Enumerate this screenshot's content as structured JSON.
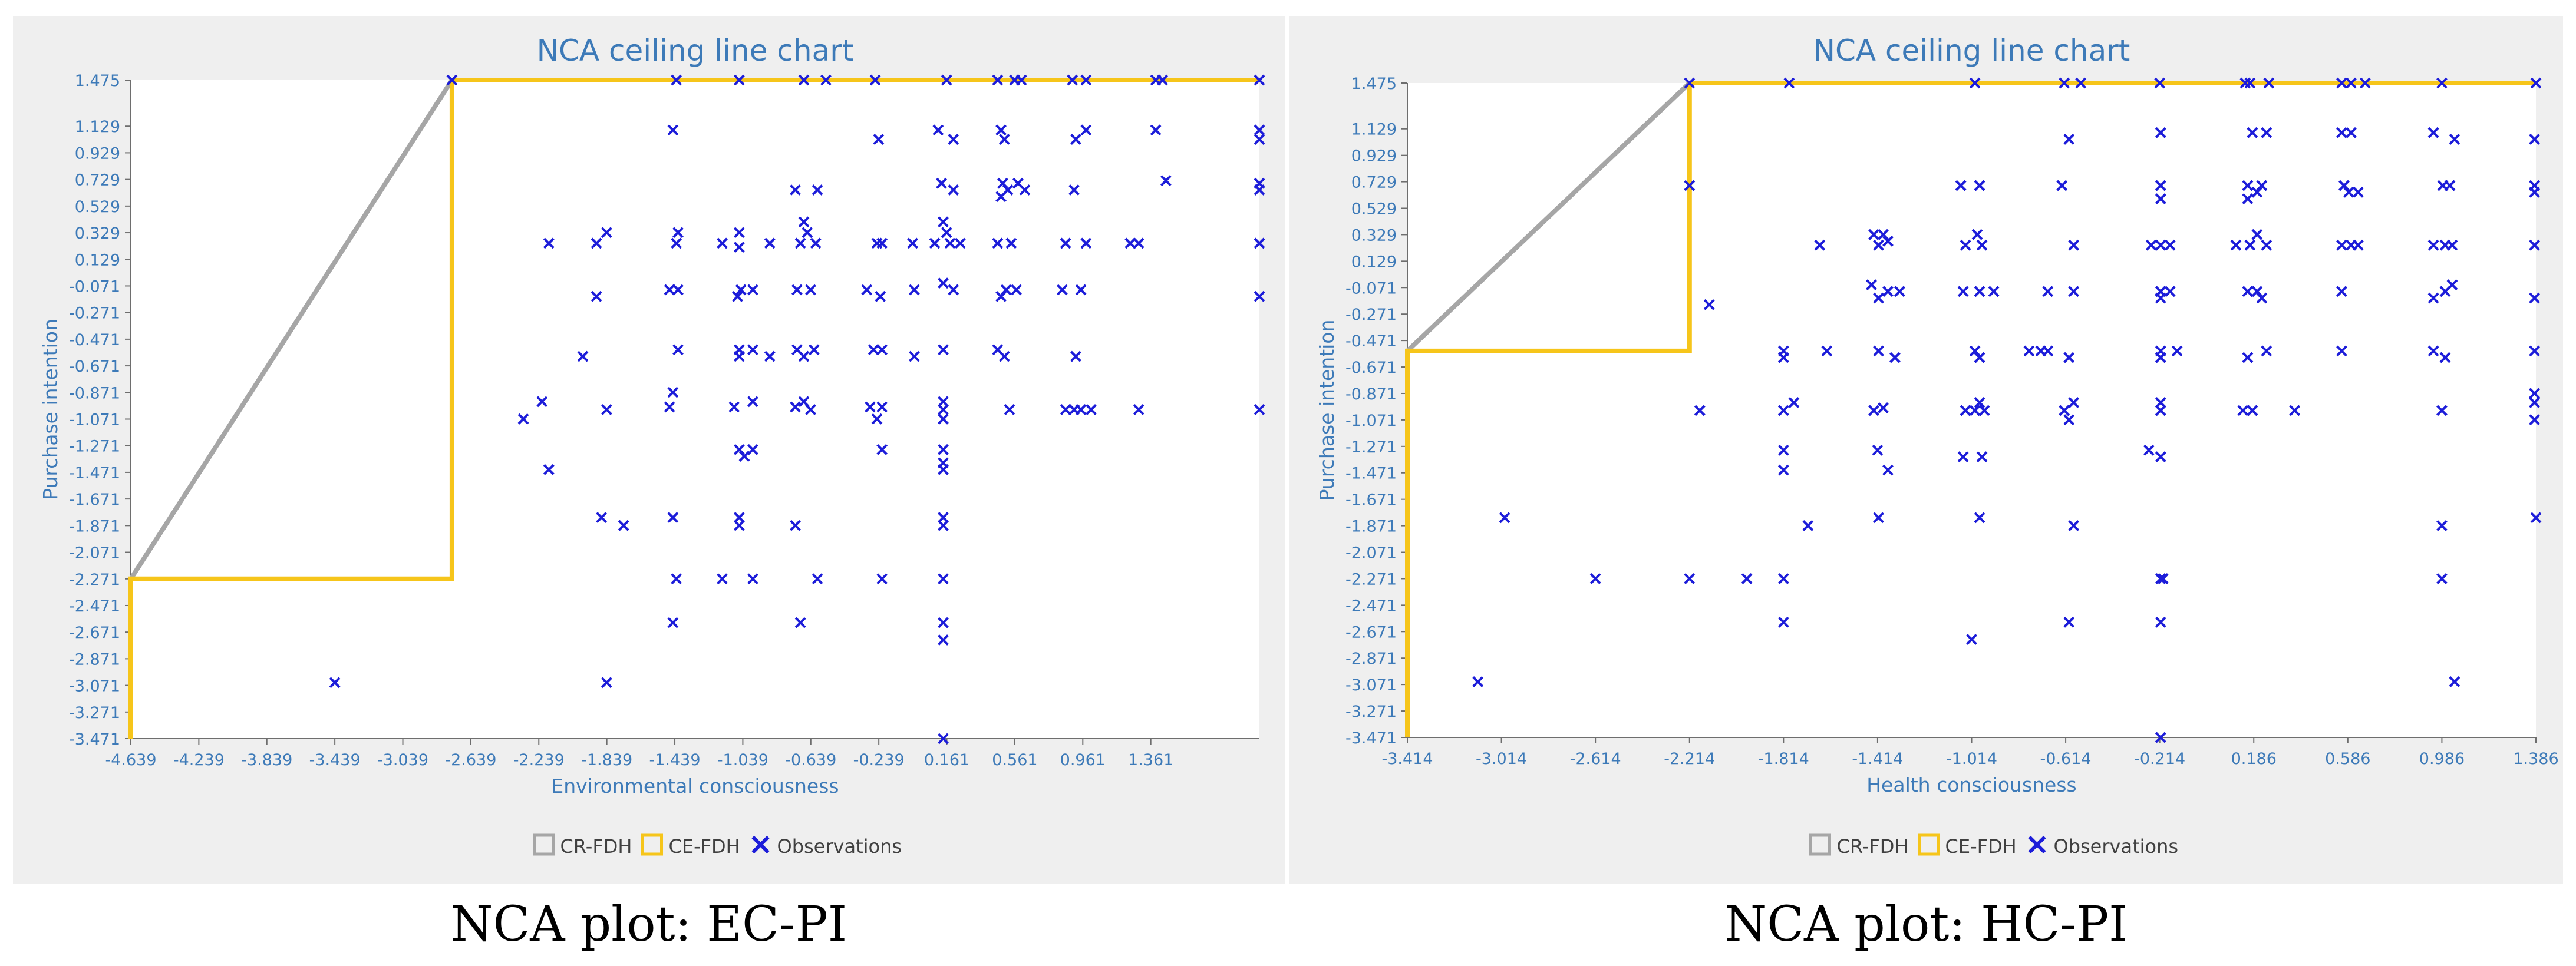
{
  "chart_data": [
    {
      "type": "scatter",
      "title": "NCA ceiling line chart",
      "xlabel": "Environmental consciousness",
      "ylabel": "Purchase intention",
      "xlim": [
        -4.639,
        2.0
      ],
      "ylim": [
        -3.471,
        1.475
      ],
      "x_ticks": [
        "-4.639",
        "-4.239",
        "-3.839",
        "-3.439",
        "-3.039",
        "-2.639",
        "-2.239",
        "-1.839",
        "-1.439",
        "-1.039",
        "-0.639",
        "-0.239",
        "0.161",
        "0.561",
        "0.961",
        "1.361"
      ],
      "y_ticks": [
        "1.475",
        "1.129",
        "0.929",
        "0.729",
        "0.529",
        "0.329",
        "0.129",
        "-0.071",
        "-0.271",
        "-0.471",
        "-0.671",
        "-0.871",
        "-1.071",
        "-1.271",
        "-1.471",
        "-1.671",
        "-1.871",
        "-2.071",
        "-2.271",
        "-2.471",
        "-2.671",
        "-2.871",
        "-3.071",
        "-3.271",
        "-3.471"
      ],
      "legend": [
        "CR-FDH",
        "CE-FDH",
        "Observations"
      ],
      "legend_position": "bottom",
      "grid": false,
      "ce_fdh": [
        [
          -4.639,
          -3.471
        ],
        [
          -4.639,
          -2.271
        ],
        [
          -2.75,
          -2.271
        ],
        [
          -2.75,
          1.475
        ],
        [
          2.0,
          1.475
        ]
      ],
      "cr_fdh": [
        [
          -4.639,
          -2.271
        ],
        [
          -2.75,
          1.475
        ]
      ],
      "observations": [
        [
          -2.75,
          1.475
        ],
        [
          -1.43,
          1.475
        ],
        [
          -1.06,
          1.475
        ],
        [
          -0.68,
          1.475
        ],
        [
          -0.55,
          1.475
        ],
        [
          -0.26,
          1.475
        ],
        [
          0.16,
          1.475
        ],
        [
          0.46,
          1.475
        ],
        [
          0.56,
          1.475
        ],
        [
          0.6,
          1.475
        ],
        [
          0.9,
          1.475
        ],
        [
          0.98,
          1.475
        ],
        [
          1.39,
          1.475
        ],
        [
          1.43,
          1.475
        ],
        [
          2.0,
          1.475
        ],
        [
          -1.45,
          1.1
        ],
        [
          -0.24,
          1.03
        ],
        [
          0.11,
          1.1
        ],
        [
          0.2,
          1.03
        ],
        [
          0.48,
          1.1
        ],
        [
          0.5,
          1.03
        ],
        [
          0.92,
          1.03
        ],
        [
          0.98,
          1.1
        ],
        [
          1.39,
          1.1
        ],
        [
          2.0,
          1.1
        ],
        [
          2.0,
          1.03
        ],
        [
          -0.73,
          0.65
        ],
        [
          -0.6,
          0.65
        ],
        [
          0.13,
          0.7
        ],
        [
          0.2,
          0.65
        ],
        [
          0.49,
          0.7
        ],
        [
          0.52,
          0.65
        ],
        [
          0.58,
          0.7
        ],
        [
          0.48,
          0.6
        ],
        [
          0.62,
          0.65
        ],
        [
          0.91,
          0.65
        ],
        [
          1.45,
          0.72
        ],
        [
          2.0,
          0.7
        ],
        [
          2.0,
          0.65
        ],
        [
          -0.68,
          0.41
        ],
        [
          0.14,
          0.41
        ],
        [
          -2.18,
          0.25
        ],
        [
          -1.9,
          0.25
        ],
        [
          -1.84,
          0.33
        ],
        [
          -1.43,
          0.25
        ],
        [
          -1.42,
          0.33
        ],
        [
          -1.16,
          0.25
        ],
        [
          -1.06,
          0.33
        ],
        [
          -1.06,
          0.22
        ],
        [
          -0.88,
          0.25
        ],
        [
          -0.7,
          0.25
        ],
        [
          -0.66,
          0.33
        ],
        [
          -0.61,
          0.25
        ],
        [
          -0.25,
          0.25
        ],
        [
          -0.22,
          0.25
        ],
        [
          -0.04,
          0.25
        ],
        [
          0.09,
          0.25
        ],
        [
          0.16,
          0.33
        ],
        [
          0.18,
          0.25
        ],
        [
          0.24,
          0.25
        ],
        [
          0.46,
          0.25
        ],
        [
          0.54,
          0.25
        ],
        [
          0.86,
          0.25
        ],
        [
          0.98,
          0.25
        ],
        [
          1.24,
          0.25
        ],
        [
          1.29,
          0.25
        ],
        [
          2.0,
          0.25
        ],
        [
          -1.9,
          -0.15
        ],
        [
          -1.47,
          -0.1
        ],
        [
          -1.42,
          -0.1
        ],
        [
          -1.05,
          -0.1
        ],
        [
          -1.07,
          -0.15
        ],
        [
          -0.98,
          -0.1
        ],
        [
          -0.72,
          -0.1
        ],
        [
          -0.64,
          -0.1
        ],
        [
          -0.31,
          -0.1
        ],
        [
          -0.23,
          -0.15
        ],
        [
          -0.03,
          -0.1
        ],
        [
          0.14,
          -0.05
        ],
        [
          0.2,
          -0.1
        ],
        [
          0.51,
          -0.1
        ],
        [
          0.48,
          -0.15
        ],
        [
          0.57,
          -0.1
        ],
        [
          0.84,
          -0.1
        ],
        [
          0.95,
          -0.1
        ],
        [
          2.0,
          -0.15
        ],
        [
          -1.98,
          -0.6
        ],
        [
          -1.42,
          -0.55
        ],
        [
          -1.06,
          -0.55
        ],
        [
          -1.06,
          -0.6
        ],
        [
          -0.98,
          -0.55
        ],
        [
          -0.88,
          -0.6
        ],
        [
          -0.72,
          -0.55
        ],
        [
          -0.68,
          -0.6
        ],
        [
          -0.62,
          -0.55
        ],
        [
          -0.27,
          -0.55
        ],
        [
          -0.22,
          -0.55
        ],
        [
          -0.03,
          -0.6
        ],
        [
          0.14,
          -0.55
        ],
        [
          0.46,
          -0.55
        ],
        [
          0.5,
          -0.6
        ],
        [
          0.92,
          -0.6
        ],
        [
          -1.45,
          -0.87
        ],
        [
          -2.33,
          -1.07
        ],
        [
          -2.22,
          -0.94
        ],
        [
          -1.84,
          -1.0
        ],
        [
          -1.47,
          -0.98
        ],
        [
          -1.09,
          -0.98
        ],
        [
          -0.98,
          -0.94
        ],
        [
          -0.73,
          -0.98
        ],
        [
          -0.64,
          -1.0
        ],
        [
          -0.68,
          -0.94
        ],
        [
          -0.29,
          -0.98
        ],
        [
          -0.25,
          -1.07
        ],
        [
          -0.22,
          -0.98
        ],
        [
          0.14,
          -0.94
        ],
        [
          0.14,
          -1.0
        ],
        [
          0.14,
          -1.07
        ],
        [
          0.53,
          -1.0
        ],
        [
          0.86,
          -1.0
        ],
        [
          0.91,
          -1.0
        ],
        [
          0.95,
          -1.0
        ],
        [
          1.01,
          -1.0
        ],
        [
          1.29,
          -1.0
        ],
        [
          2.0,
          -1.0
        ],
        [
          -2.18,
          -1.45
        ],
        [
          -1.06,
          -1.3
        ],
        [
          -1.03,
          -1.35
        ],
        [
          -0.98,
          -1.3
        ],
        [
          -0.22,
          -1.3
        ],
        [
          0.14,
          -1.3
        ],
        [
          0.14,
          -1.4
        ],
        [
          0.14,
          -1.45
        ],
        [
          -1.87,
          -1.81
        ],
        [
          -1.74,
          -1.87
        ],
        [
          -1.45,
          -1.81
        ],
        [
          -1.06,
          -1.81
        ],
        [
          -1.06,
          -1.87
        ],
        [
          -0.73,
          -1.87
        ],
        [
          0.14,
          -1.81
        ],
        [
          0.14,
          -1.87
        ],
        [
          -1.43,
          -2.271
        ],
        [
          -1.16,
          -2.271
        ],
        [
          -0.98,
          -2.271
        ],
        [
          -0.6,
          -2.271
        ],
        [
          -0.22,
          -2.271
        ],
        [
          0.14,
          -2.271
        ],
        [
          -1.45,
          -2.6
        ],
        [
          -0.7,
          -2.6
        ],
        [
          0.14,
          -2.6
        ],
        [
          0.14,
          -2.73
        ],
        [
          -3.439,
          -3.05
        ],
        [
          -1.84,
          -3.05
        ],
        [
          0.14,
          -3.471
        ]
      ]
    },
    {
      "type": "scatter",
      "title": "NCA ceiling line chart",
      "xlabel": "Health consciousness",
      "ylabel": "Purchase intention",
      "xlim": [
        -3.414,
        1.386
      ],
      "ylim": [
        -3.471,
        1.475
      ],
      "x_ticks": [
        "-3.414",
        "-3.014",
        "-2.614",
        "-2.214",
        "-1.814",
        "-1.414",
        "-1.014",
        "-0.614",
        "-0.214",
        "0.186",
        "0.586",
        "0.986",
        "1.386"
      ],
      "y_ticks": [
        "1.475",
        "1.129",
        "0.929",
        "0.729",
        "0.529",
        "0.329",
        "0.129",
        "-0.071",
        "-0.271",
        "-0.471",
        "-0.671",
        "-0.871",
        "-1.071",
        "-1.271",
        "-1.471",
        "-1.671",
        "-1.871",
        "-2.071",
        "-2.271",
        "-2.471",
        "-2.671",
        "-2.871",
        "-3.071",
        "-3.271",
        "-3.471"
      ],
      "legend": [
        "CR-FDH",
        "CE-FDH",
        "Observations"
      ],
      "legend_position": "bottom",
      "grid": false,
      "ce_fdh": [
        [
          -3.414,
          -3.471
        ],
        [
          -3.414,
          -0.55
        ],
        [
          -2.214,
          -0.55
        ],
        [
          -2.214,
          1.475
        ],
        [
          1.386,
          1.475
        ]
      ],
      "cr_fdh": [
        [
          -3.414,
          -0.55
        ],
        [
          -2.214,
          1.475
        ]
      ],
      "observations": [
        [
          -2.214,
          1.475
        ],
        [
          -1.79,
          1.475
        ],
        [
          -1.0,
          1.475
        ],
        [
          -0.62,
          1.475
        ],
        [
          -0.55,
          1.475
        ],
        [
          -0.214,
          1.475
        ],
        [
          0.15,
          1.475
        ],
        [
          0.17,
          1.475
        ],
        [
          0.25,
          1.475
        ],
        [
          0.56,
          1.475
        ],
        [
          0.6,
          1.475
        ],
        [
          0.66,
          1.475
        ],
        [
          0.986,
          1.475
        ],
        [
          1.386,
          1.475
        ],
        [
          -0.6,
          1.05
        ],
        [
          -0.21,
          1.1
        ],
        [
          0.18,
          1.1
        ],
        [
          0.24,
          1.1
        ],
        [
          0.56,
          1.1
        ],
        [
          0.6,
          1.1
        ],
        [
          0.95,
          1.1
        ],
        [
          1.04,
          1.05
        ],
        [
          1.38,
          1.05
        ],
        [
          -2.214,
          0.7
        ],
        [
          -1.06,
          0.7
        ],
        [
          -0.98,
          0.7
        ],
        [
          -0.63,
          0.7
        ],
        [
          -0.21,
          0.7
        ],
        [
          -0.21,
          0.6
        ],
        [
          0.16,
          0.7
        ],
        [
          0.16,
          0.6
        ],
        [
          0.2,
          0.65
        ],
        [
          0.22,
          0.7
        ],
        [
          0.57,
          0.7
        ],
        [
          0.59,
          0.65
        ],
        [
          0.63,
          0.65
        ],
        [
          0.99,
          0.7
        ],
        [
          1.02,
          0.7
        ],
        [
          1.38,
          0.7
        ],
        [
          1.38,
          0.65
        ],
        [
          -1.66,
          0.25
        ],
        [
          -1.43,
          0.33
        ],
        [
          -1.39,
          0.33
        ],
        [
          -1.41,
          0.25
        ],
        [
          -1.37,
          0.28
        ],
        [
          -1.04,
          0.25
        ],
        [
          -0.99,
          0.33
        ],
        [
          -0.97,
          0.25
        ],
        [
          -0.58,
          0.25
        ],
        [
          -0.25,
          0.25
        ],
        [
          -0.21,
          0.25
        ],
        [
          -0.17,
          0.25
        ],
        [
          0.11,
          0.25
        ],
        [
          0.17,
          0.25
        ],
        [
          0.2,
          0.33
        ],
        [
          0.24,
          0.25
        ],
        [
          0.56,
          0.25
        ],
        [
          0.6,
          0.25
        ],
        [
          0.63,
          0.25
        ],
        [
          0.95,
          0.25
        ],
        [
          1.0,
          0.25
        ],
        [
          1.03,
          0.25
        ],
        [
          1.38,
          0.25
        ],
        [
          -2.13,
          -0.2
        ],
        [
          -1.44,
          -0.05
        ],
        [
          -1.41,
          -0.15
        ],
        [
          -1.37,
          -0.1
        ],
        [
          -1.32,
          -0.1
        ],
        [
          -1.05,
          -0.1
        ],
        [
          -0.98,
          -0.1
        ],
        [
          -0.92,
          -0.1
        ],
        [
          -0.69,
          -0.1
        ],
        [
          -0.58,
          -0.1
        ],
        [
          -0.21,
          -0.1
        ],
        [
          -0.21,
          -0.15
        ],
        [
          -0.17,
          -0.1
        ],
        [
          0.16,
          -0.1
        ],
        [
          0.2,
          -0.1
        ],
        [
          0.22,
          -0.15
        ],
        [
          0.56,
          -0.1
        ],
        [
          0.95,
          -0.15
        ],
        [
          1.0,
          -0.1
        ],
        [
          1.03,
          -0.05
        ],
        [
          1.38,
          -0.15
        ],
        [
          -1.814,
          -0.55
        ],
        [
          -1.814,
          -0.6
        ],
        [
          -1.63,
          -0.55
        ],
        [
          -1.41,
          -0.55
        ],
        [
          -1.34,
          -0.6
        ],
        [
          -1.0,
          -0.55
        ],
        [
          -0.98,
          -0.6
        ],
        [
          -0.77,
          -0.55
        ],
        [
          -0.72,
          -0.55
        ],
        [
          -0.69,
          -0.55
        ],
        [
          -0.6,
          -0.6
        ],
        [
          -0.21,
          -0.55
        ],
        [
          -0.21,
          -0.6
        ],
        [
          -0.14,
          -0.55
        ],
        [
          0.16,
          -0.6
        ],
        [
          0.24,
          -0.55
        ],
        [
          0.56,
          -0.55
        ],
        [
          0.95,
          -0.55
        ],
        [
          1.0,
          -0.6
        ],
        [
          1.38,
          -0.55
        ],
        [
          -2.17,
          -1.0
        ],
        [
          -1.814,
          -1.0
        ],
        [
          -1.77,
          -0.94
        ],
        [
          -1.43,
          -1.0
        ],
        [
          -1.39,
          -0.98
        ],
        [
          -1.04,
          -1.0
        ],
        [
          -1.0,
          -1.0
        ],
        [
          -0.98,
          -0.94
        ],
        [
          -0.96,
          -1.0
        ],
        [
          -0.62,
          -1.0
        ],
        [
          -0.58,
          -0.94
        ],
        [
          -0.6,
          -1.07
        ],
        [
          -0.21,
          -0.94
        ],
        [
          -0.21,
          -1.0
        ],
        [
          0.14,
          -1.0
        ],
        [
          0.18,
          -1.0
        ],
        [
          0.36,
          -1.0
        ],
        [
          0.986,
          -1.0
        ],
        [
          1.38,
          -0.87
        ],
        [
          1.38,
          -0.94
        ],
        [
          1.38,
          -1.07
        ],
        [
          -1.814,
          -1.3
        ],
        [
          -1.814,
          -1.45
        ],
        [
          -1.414,
          -1.3
        ],
        [
          -1.37,
          -1.45
        ],
        [
          -1.05,
          -1.35
        ],
        [
          -0.97,
          -1.35
        ],
        [
          -0.26,
          -1.3
        ],
        [
          -0.21,
          -1.35
        ],
        [
          -3.0,
          -1.81
        ],
        [
          -1.71,
          -1.87
        ],
        [
          -1.41,
          -1.81
        ],
        [
          -0.98,
          -1.81
        ],
        [
          -0.58,
          -1.87
        ],
        [
          0.986,
          -1.87
        ],
        [
          1.386,
          -1.81
        ],
        [
          -2.614,
          -2.271
        ],
        [
          -2.214,
          -2.271
        ],
        [
          -1.97,
          -2.271
        ],
        [
          -1.814,
          -2.271
        ],
        [
          -0.21,
          -2.271
        ],
        [
          -0.2,
          -2.271
        ],
        [
          0.986,
          -2.271
        ],
        [
          -1.814,
          -2.6
        ],
        [
          -1.014,
          -2.73
        ],
        [
          -0.6,
          -2.6
        ],
        [
          -0.21,
          -2.6
        ],
        [
          -3.114,
          -3.05
        ],
        [
          1.04,
          -3.05
        ],
        [
          -0.21,
          -3.471
        ]
      ]
    }
  ],
  "captions": {
    "left": "NCA plot: EC-PI",
    "right": "NCA plot: HC-PI"
  },
  "colors": {
    "panel_background": "#efefef",
    "plot_background": "#ffffff",
    "title": "#3d7ab8",
    "tick_label": "#3d7ab8",
    "axis_label": "#3d7ab8",
    "ce_fdh": "#f6c51a",
    "cr_fdh": "#a6a6a6",
    "observation": "#1c1cd9"
  }
}
